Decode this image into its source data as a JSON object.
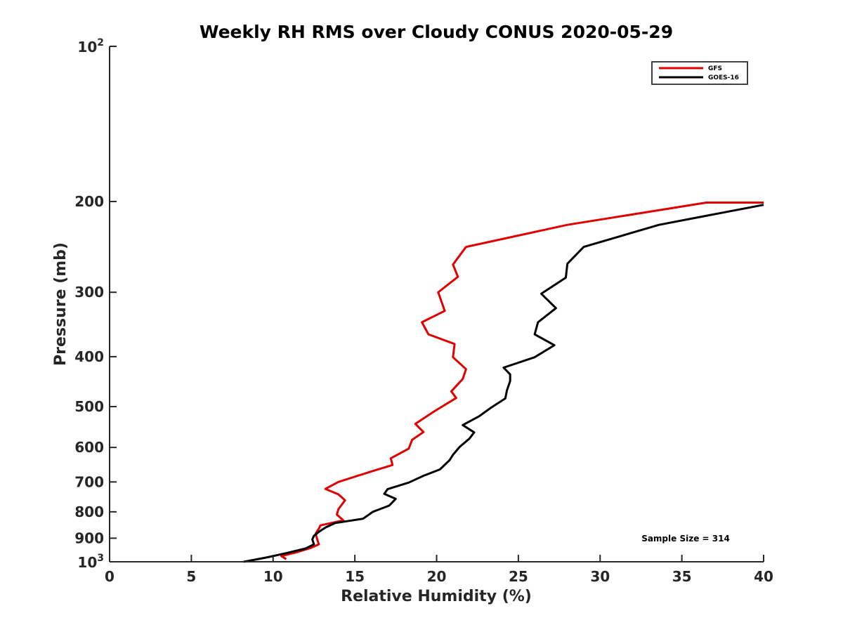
{
  "chart_data": {
    "type": "line",
    "title": "Weekly RH RMS over Cloudy CONUS 2020-05-29",
    "xlabel": "Relative Humidity (%)",
    "ylabel": "Pressure (mb)",
    "xlim": [
      0,
      40
    ],
    "ylim": [
      100,
      1000
    ],
    "y_scale": "log",
    "y_reversed": true,
    "grid": false,
    "legend_position": "top-right",
    "x_ticks": [
      0,
      5,
      10,
      15,
      20,
      25,
      30,
      35,
      40
    ],
    "y_ticks": [
      {
        "value": 100,
        "label": "10",
        "sup": "2"
      },
      {
        "value": 200,
        "label": "200"
      },
      {
        "value": 300,
        "label": "300"
      },
      {
        "value": 400,
        "label": "400"
      },
      {
        "value": 500,
        "label": "500"
      },
      {
        "value": 600,
        "label": "600"
      },
      {
        "value": 700,
        "label": "700"
      },
      {
        "value": 800,
        "label": "800"
      },
      {
        "value": 900,
        "label": "900"
      },
      {
        "value": 1000,
        "label": "10",
        "sup": "3"
      }
    ],
    "series": [
      {
        "name": "GFS",
        "color": "#e00000",
        "points": [
          [
            10.8,
            988
          ],
          [
            10.5,
            975
          ],
          [
            11.5,
            957
          ],
          [
            12.3,
            940
          ],
          [
            12.8,
            925
          ],
          [
            12.7,
            905
          ],
          [
            12.6,
            882
          ],
          [
            12.8,
            862
          ],
          [
            12.9,
            850
          ],
          [
            14.3,
            831
          ],
          [
            13.9,
            810
          ],
          [
            14.0,
            790
          ],
          [
            14.4,
            760
          ],
          [
            14.0,
            740
          ],
          [
            13.2,
            722
          ],
          [
            14.0,
            700
          ],
          [
            16.0,
            668
          ],
          [
            17.3,
            649
          ],
          [
            17.2,
            630
          ],
          [
            18.3,
            603
          ],
          [
            18.5,
            580
          ],
          [
            19.2,
            560
          ],
          [
            18.7,
            540
          ],
          [
            19.8,
            512
          ],
          [
            21.2,
            481
          ],
          [
            20.9,
            467
          ],
          [
            21.6,
            442
          ],
          [
            21.8,
            423
          ],
          [
            21.0,
            401
          ],
          [
            21.1,
            378
          ],
          [
            19.5,
            362
          ],
          [
            19.1,
            343
          ],
          [
            20.5,
            326
          ],
          [
            20.1,
            300
          ],
          [
            21.3,
            280
          ],
          [
            21.0,
            265
          ],
          [
            21.8,
            245
          ],
          [
            28.0,
            222
          ],
          [
            36.5,
            201
          ],
          [
            40.0,
            201
          ]
        ]
      },
      {
        "name": "GOES-16",
        "color": "#000000",
        "points": [
          [
            8.2,
            1000
          ],
          [
            9.6,
            981
          ],
          [
            10.8,
            962
          ],
          [
            12.0,
            942
          ],
          [
            12.5,
            925
          ],
          [
            12.4,
            905
          ],
          [
            12.5,
            890
          ],
          [
            12.8,
            875
          ],
          [
            13.2,
            858
          ],
          [
            13.8,
            841
          ],
          [
            15.5,
            825
          ],
          [
            16.1,
            800
          ],
          [
            17.1,
            778
          ],
          [
            17.5,
            755
          ],
          [
            16.8,
            738
          ],
          [
            17.0,
            723
          ],
          [
            18.3,
            702
          ],
          [
            19.2,
            681
          ],
          [
            20.2,
            662
          ],
          [
            20.8,
            635
          ],
          [
            21.0,
            620
          ],
          [
            21.4,
            599
          ],
          [
            22.0,
            577
          ],
          [
            22.3,
            561
          ],
          [
            21.6,
            543
          ],
          [
            22.6,
            522
          ],
          [
            23.3,
            503
          ],
          [
            24.2,
            482
          ],
          [
            24.3,
            465
          ],
          [
            24.5,
            446
          ],
          [
            24.5,
            433
          ],
          [
            24.1,
            420
          ],
          [
            26.0,
            401
          ],
          [
            27.2,
            380
          ],
          [
            26.0,
            362
          ],
          [
            26.2,
            343
          ],
          [
            27.3,
            322
          ],
          [
            26.4,
            302
          ],
          [
            27.9,
            281
          ],
          [
            28.0,
            264
          ],
          [
            29.0,
            245
          ],
          [
            33.6,
            222
          ],
          [
            40.0,
            203
          ]
        ]
      }
    ],
    "annotations": [
      "Sample Size = 314"
    ]
  }
}
